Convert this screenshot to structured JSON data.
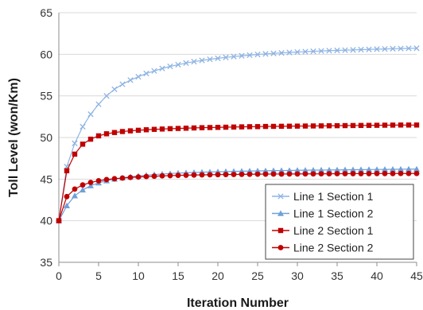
{
  "chart_data": {
    "type": "line",
    "title": "",
    "xlabel": "Iteration Number",
    "ylabel": "Toll Level (won/Km)",
    "xlim": [
      0,
      45
    ],
    "ylim": [
      35,
      65
    ],
    "x_ticks": [
      0,
      5,
      10,
      15,
      20,
      25,
      30,
      35,
      40,
      45
    ],
    "y_ticks": [
      35,
      40,
      45,
      50,
      55,
      60,
      65
    ],
    "grid": "horizontal",
    "legend_position": "bottom-right",
    "x": [
      0,
      1,
      2,
      3,
      4,
      5,
      6,
      7,
      8,
      9,
      10,
      11,
      12,
      13,
      14,
      15,
      16,
      17,
      18,
      19,
      20,
      21,
      22,
      23,
      24,
      25,
      26,
      27,
      28,
      29,
      30,
      31,
      32,
      33,
      34,
      35,
      36,
      37,
      38,
      39,
      40,
      41,
      42,
      43,
      44,
      45
    ],
    "series": [
      {
        "name": "Line 1 Section 1",
        "color": "#8eb4e3",
        "marker": "x",
        "values": [
          40.0,
          46.5,
          49.3,
          51.3,
          52.8,
          54.0,
          55.0,
          55.8,
          56.4,
          56.9,
          57.3,
          57.7,
          58.0,
          58.3,
          58.55,
          58.75,
          58.95,
          59.12,
          59.27,
          59.4,
          59.52,
          59.63,
          59.73,
          59.82,
          59.9,
          59.98,
          60.05,
          60.11,
          60.17,
          60.22,
          60.27,
          60.32,
          60.36,
          60.4,
          60.44,
          60.47,
          60.5,
          60.53,
          60.56,
          60.59,
          60.62,
          60.64,
          60.67,
          60.69,
          60.71,
          60.73
        ]
      },
      {
        "name": "Line 1 Section 2",
        "color": "#6fa0d8",
        "marker": "triangle",
        "values": [
          40.0,
          41.8,
          43.0,
          43.7,
          44.2,
          44.55,
          44.8,
          45.0,
          45.15,
          45.28,
          45.38,
          45.47,
          45.55,
          45.61,
          45.67,
          45.72,
          45.76,
          45.8,
          45.83,
          45.86,
          45.88,
          45.91,
          45.93,
          45.95,
          45.97,
          45.99,
          46.0,
          46.02,
          46.03,
          46.04,
          46.06,
          46.07,
          46.08,
          46.09,
          46.1,
          46.11,
          46.12,
          46.13,
          46.14,
          46.15,
          46.16,
          46.17,
          46.18,
          46.19,
          46.2,
          46.2
        ]
      },
      {
        "name": "Line 2 Section 1",
        "color": "#c00000",
        "marker": "square",
        "values": [
          40.0,
          46.0,
          48.0,
          49.2,
          49.8,
          50.2,
          50.45,
          50.6,
          50.72,
          50.8,
          50.87,
          50.93,
          50.98,
          51.02,
          51.06,
          51.09,
          51.12,
          51.15,
          51.18,
          51.2,
          51.22,
          51.24,
          51.26,
          51.28,
          51.3,
          51.31,
          51.33,
          51.34,
          51.35,
          51.36,
          51.37,
          51.38,
          51.39,
          51.4,
          51.41,
          51.42,
          51.43,
          51.44,
          51.45,
          51.46,
          51.47,
          51.48,
          51.49,
          51.5,
          51.5,
          51.5
        ]
      },
      {
        "name": "Line 2 Section 2",
        "color": "#c00000",
        "marker": "circle",
        "values": [
          40.0,
          42.9,
          43.8,
          44.3,
          44.6,
          44.8,
          44.95,
          45.05,
          45.13,
          45.2,
          45.26,
          45.31,
          45.35,
          45.39,
          45.42,
          45.45,
          45.47,
          45.49,
          45.51,
          45.52,
          45.54,
          45.55,
          45.56,
          45.57,
          45.58,
          45.59,
          45.6,
          45.61,
          45.61,
          45.62,
          45.62,
          45.63,
          45.63,
          45.64,
          45.64,
          45.65,
          45.65,
          45.66,
          45.66,
          45.66,
          45.67,
          45.67,
          45.67,
          45.68,
          45.68,
          45.68
        ]
      }
    ]
  }
}
